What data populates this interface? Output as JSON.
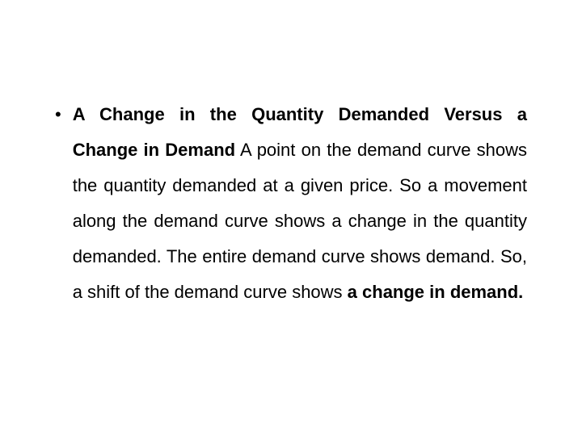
{
  "slide": {
    "bullet_char": "•",
    "bold_heading": "A Change in the Quantity Demanded Versus a Change in Demand",
    "text_part1": " A point on the demand curve shows the quantity demanded at a given price. So a movement along the demand curve shows a change in the quantity demanded. The entire demand curve shows demand. So, a shift of the demand curve shows ",
    "bold_ending": "a change in demand."
  },
  "styling": {
    "background_color": "#ffffff",
    "text_color": "#000000",
    "font_size_pt": 22,
    "line_height": 2.0,
    "font_family": "Arial"
  }
}
